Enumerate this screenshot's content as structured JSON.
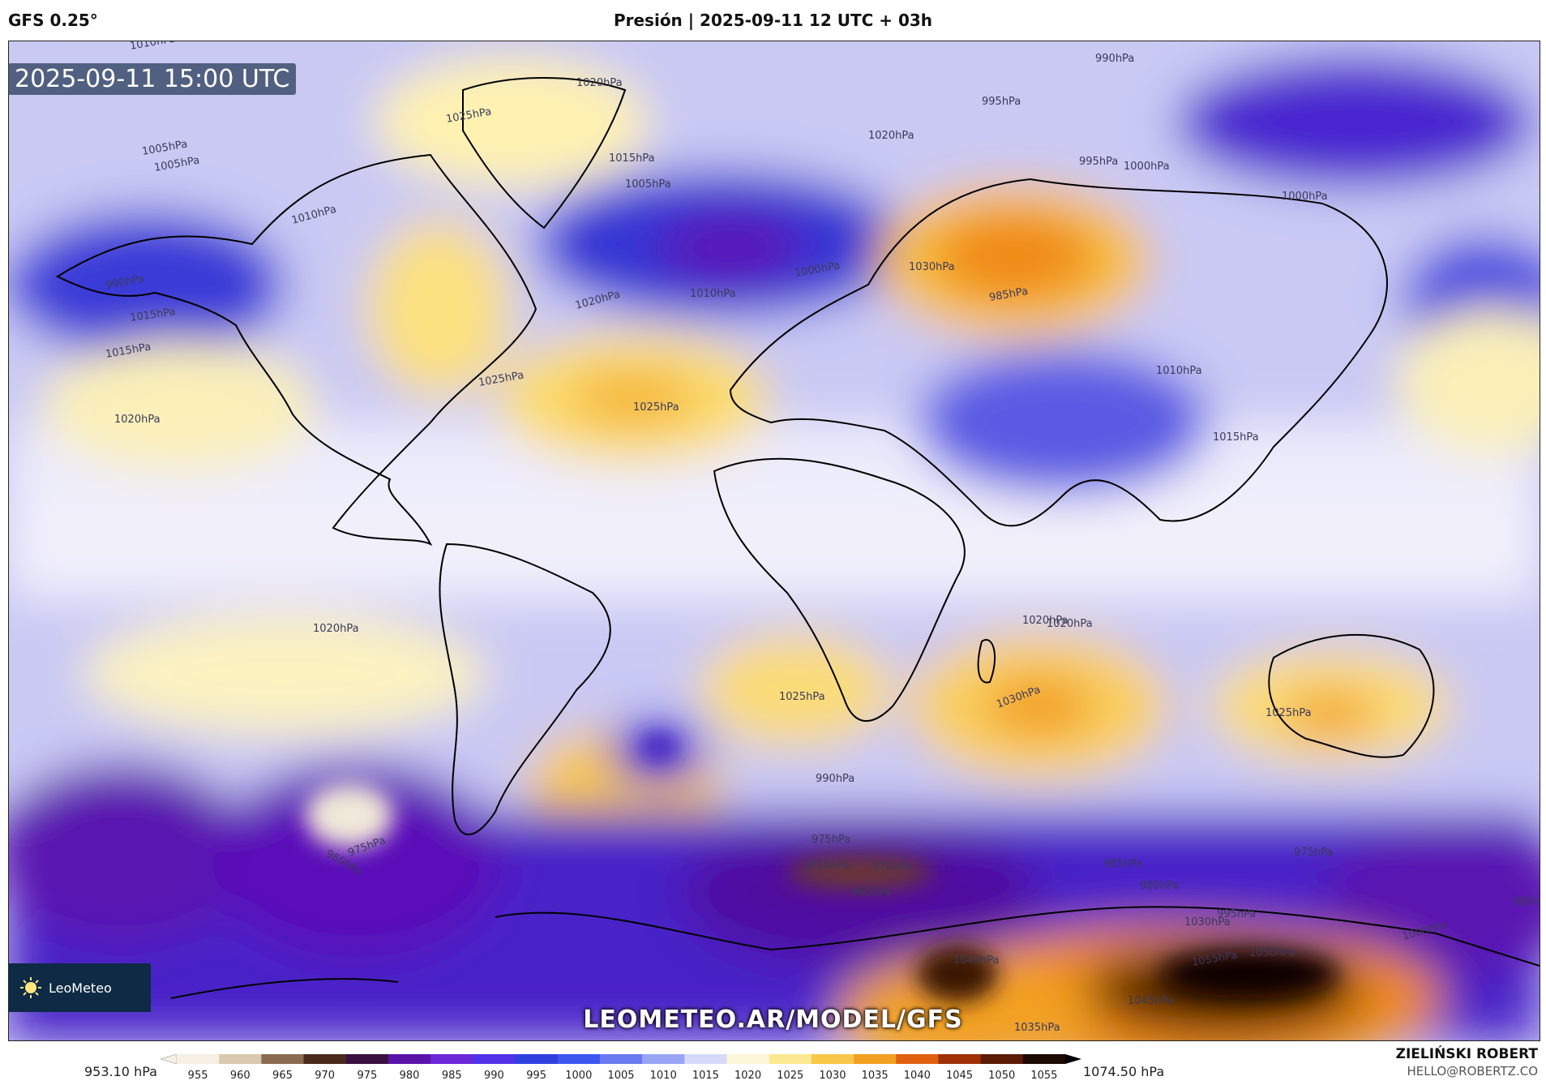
{
  "header": {
    "model": "GFS 0.25°",
    "title": "Presión | 2025-09-11 12 UTC + 03h"
  },
  "map": {
    "timestamp": "2025-09-11 15:00 UTC",
    "watermark": "LEOMETEO.AR/MODEL/GFS",
    "logo_text": "LeoMeteo",
    "pressure_labels": [
      "1010hPa",
      "1005hPa",
      "1015hPa",
      "990hPa",
      "1020hPa",
      "1025hPa",
      "995hPa",
      "1020hPa",
      "985hPa",
      "1010hPa",
      "1005hPa",
      "1000hPa",
      "995hPa",
      "990hPa",
      "1015hPa",
      "1000hPa",
      "1005hPa",
      "1025hPa",
      "1030hPa",
      "1000hPa",
      "1015hPa",
      "1025hPa",
      "1020hPa",
      "1010hPa",
      "1020hPa",
      "1010hPa",
      "1015hPa",
      "1020hPa",
      "1020hPa",
      "1025hPa",
      "1030hPa",
      "1020hPa",
      "1025hPa",
      "1015hPa",
      "990hPa",
      "975hPa",
      "970hPa",
      "965hPa",
      "960hPa",
      "975hPa",
      "985hPa",
      "980hPa",
      "1000hPa",
      "995hPa",
      "1030hPa",
      "1055hPa",
      "1050hPa",
      "1045hPa",
      "1040hPa",
      "1035hPa",
      "980hPa",
      "975hPa"
    ],
    "colors": {
      "land_outline": "#000000",
      "low_deep": "#5a12c8",
      "low": "#3c3ce0",
      "mid": "#e8e8fa",
      "high": "#fff4b0",
      "high_strong": "#f2a020",
      "very_high": "#6a1a00"
    }
  },
  "colorbar": {
    "min_label": "953.10 hPa",
    "max_label": "1074.50 hPa",
    "ticks": [
      "955",
      "960",
      "965",
      "970",
      "975",
      "980",
      "985",
      "990",
      "995",
      "1000",
      "1005",
      "1010",
      "1015",
      "1020",
      "1025",
      "1030",
      "1035",
      "1040",
      "1045",
      "1050",
      "1055"
    ],
    "colors": [
      "#f5efe4",
      "#d9c8b0",
      "#8a6a50",
      "#4a2a1a",
      "#3a1040",
      "#5a12a8",
      "#6a28d8",
      "#5030e8",
      "#3040e0",
      "#3c56f0",
      "#6a7af0",
      "#9aa4f4",
      "#d6daf8",
      "#fbf7d8",
      "#fce890",
      "#f7c848",
      "#f2a020",
      "#e06010",
      "#a03008",
      "#5a1a04",
      "#1a0a02"
    ]
  },
  "author": {
    "name": "ZIELIŃSKI ROBERT",
    "email": "HELLO@ROBERTZ.CO"
  }
}
